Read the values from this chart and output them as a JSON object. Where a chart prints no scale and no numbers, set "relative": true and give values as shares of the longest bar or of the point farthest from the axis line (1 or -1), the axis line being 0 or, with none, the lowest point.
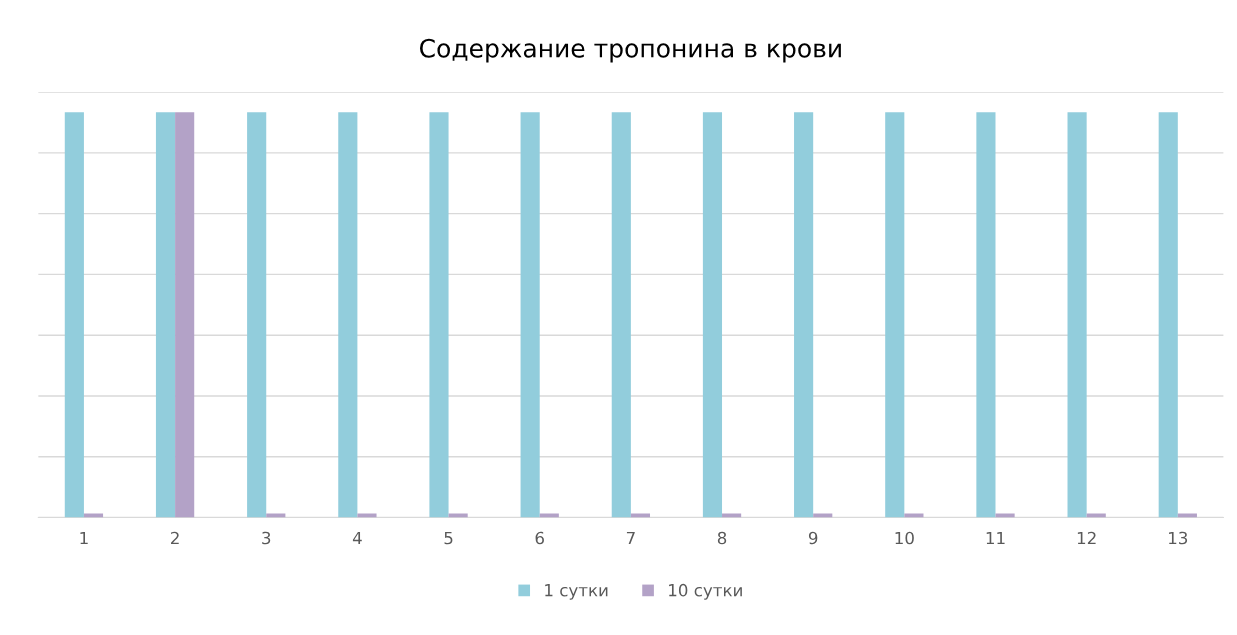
{
  "chart_data": {
    "type": "bar",
    "title": "Содержание тропонина в крови",
    "categories": [
      "1",
      "2",
      "3",
      "4",
      "5",
      "6",
      "7",
      "8",
      "9",
      "10",
      "11",
      "12",
      "13"
    ],
    "relative": true,
    "series": [
      {
        "name": "1 сутки",
        "color": "#92cddc",
        "values": [
          1,
          1,
          1,
          1,
          1,
          1,
          1,
          1,
          1,
          1,
          1,
          1,
          1
        ]
      },
      {
        "name": "10 сутки",
        "color": "#b3a2c7",
        "values": [
          0.01,
          1,
          0.01,
          0.01,
          0.01,
          0.01,
          0.01,
          0.01,
          0.01,
          0.01,
          0.01,
          0.01,
          0.01
        ]
      }
    ],
    "grid": "y",
    "legend": "bottom"
  }
}
